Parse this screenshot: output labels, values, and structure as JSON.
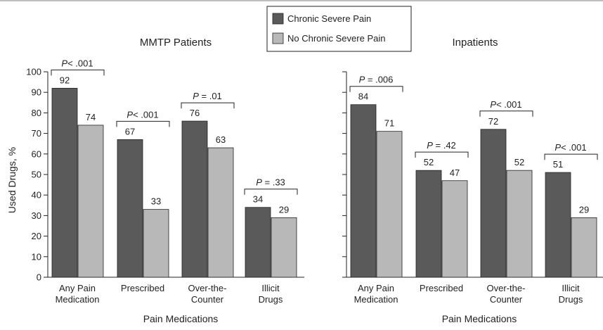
{
  "chart_data": [
    {
      "type": "bar",
      "title": "MMTP Patients",
      "xlabel": "Pain Medications",
      "ylabel": "Used Drugs, %",
      "ylim": [
        0,
        100
      ],
      "yticks": [
        "0",
        "10",
        "20",
        "30",
        "40",
        "50",
        "60",
        "70",
        "80",
        "90",
        "100"
      ],
      "categories": [
        "Any Pain\nMedication",
        "Prescribed",
        "Over-the-\nCounter",
        "Illicit\nDrugs"
      ],
      "series": [
        {
          "name": "Chronic Severe Pain",
          "values": [
            92,
            67,
            76,
            34
          ]
        },
        {
          "name": "No Chronic Severe Pain",
          "values": [
            74,
            33,
            63,
            29
          ]
        }
      ],
      "value_labels": [
        [
          "92",
          "74"
        ],
        [
          "67",
          "33"
        ],
        [
          "76",
          "63"
        ],
        [
          "34",
          "29"
        ]
      ],
      "p_values": [
        {
          "p": "P",
          "rest": "< .001"
        },
        {
          "p": "P",
          "rest": "< .001"
        },
        {
          "p": "P",
          "rest": " = .01"
        },
        {
          "p": "P",
          "rest": " = .33"
        }
      ],
      "grid": false
    },
    {
      "type": "bar",
      "title": "Inpatients",
      "xlabel": "Pain Medications",
      "ylabel": "",
      "ylim": [
        0,
        100
      ],
      "categories": [
        "Any Pain\nMedication",
        "Prescribed",
        "Over-the-\nCounter",
        "Illicit\nDrugs"
      ],
      "series": [
        {
          "name": "Chronic Severe Pain",
          "values": [
            84,
            52,
            72,
            51
          ]
        },
        {
          "name": "No Chronic Severe Pain",
          "values": [
            71,
            47,
            52,
            29
          ]
        }
      ],
      "value_labels": [
        [
          "84",
          "71"
        ],
        [
          "52",
          "47"
        ],
        [
          "72",
          "52"
        ],
        [
          "51",
          "29"
        ]
      ],
      "p_values": [
        {
          "p": "P",
          "rest": " = .006"
        },
        {
          "p": "P",
          "rest": " = .42"
        },
        {
          "p": "P",
          "rest": "< .001"
        },
        {
          "p": "P",
          "rest": "< .001"
        }
      ],
      "grid": false
    }
  ],
  "legend": {
    "placement": "top-center",
    "items": [
      {
        "label": "Chronic Severe Pain",
        "color": "#5a5a5a"
      },
      {
        "label": "No Chronic Severe Pain",
        "color": "#b8b8b8"
      }
    ]
  },
  "colors": {
    "dark_bar": "#5a5a5a",
    "light_bar": "#b8b8b8",
    "axis": "#222222",
    "rule": "#999999"
  }
}
